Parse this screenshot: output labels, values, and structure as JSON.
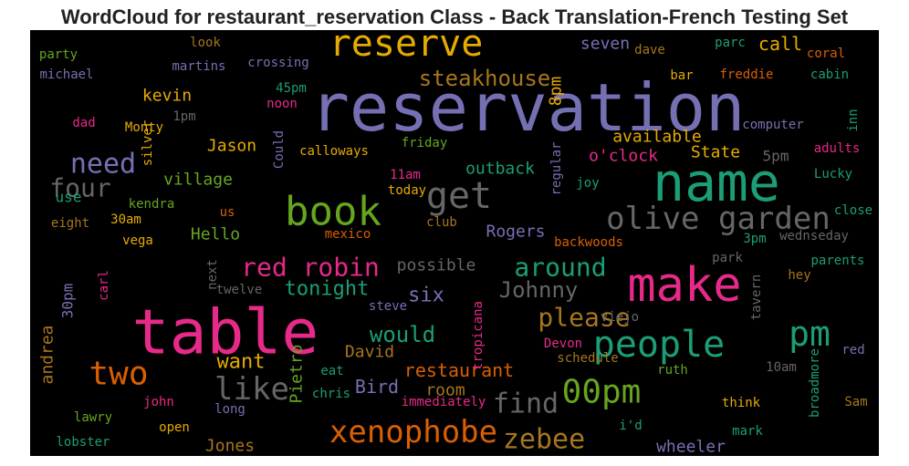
{
  "chart_data": {
    "type": "wordcloud",
    "title": "WordCloud for restaurant_reservation Class - Back Translation-French Testing Set",
    "background": "#000000",
    "words": [
      {
        "text": "reserve",
        "color": "#e6ab02"
      },
      {
        "text": "reservation",
        "color": "#7570b3"
      },
      {
        "text": "name",
        "color": "#1b9e77"
      },
      {
        "text": "table",
        "color": "#e7298a"
      },
      {
        "text": "make",
        "color": "#e7298a"
      },
      {
        "text": "book",
        "color": "#66a61e"
      },
      {
        "text": "get",
        "color": "#666666"
      },
      {
        "text": "olive garden",
        "color": "#666666"
      },
      {
        "text": "people",
        "color": "#1b9e77"
      },
      {
        "text": "pm",
        "color": "#1b9e77"
      },
      {
        "text": "two",
        "color": "#d95f02"
      },
      {
        "text": "need",
        "color": "#7570b3"
      },
      {
        "text": "four",
        "color": "#666666"
      },
      {
        "text": "red robin",
        "color": "#e7298a"
      },
      {
        "text": "around",
        "color": "#1b9e77"
      },
      {
        "text": "please",
        "color": "#a6761d"
      },
      {
        "text": "like",
        "color": "#666666"
      },
      {
        "text": "find",
        "color": "#666666"
      },
      {
        "text": "00pm",
        "color": "#66a61e"
      },
      {
        "text": "xenophobe",
        "color": "#d95f02"
      },
      {
        "text": "zebee",
        "color": "#a6761d"
      },
      {
        "text": "steakhouse",
        "color": "#a6761d"
      },
      {
        "text": "Johnny",
        "color": "#666666"
      },
      {
        "text": "tonight",
        "color": "#1b9e77"
      },
      {
        "text": "six",
        "color": "#7570b3"
      },
      {
        "text": "would",
        "color": "#1b9e77"
      },
      {
        "text": "want",
        "color": "#e6ab02"
      },
      {
        "text": "restaurant",
        "color": "#d95f02"
      },
      {
        "text": "David",
        "color": "#a6761d"
      },
      {
        "text": "Bird",
        "color": "#7570b3"
      },
      {
        "text": "room",
        "color": "#a6761d"
      },
      {
        "text": "Jones",
        "color": "#a6761d"
      },
      {
        "text": "wheeler",
        "color": "#7570b3"
      },
      {
        "text": "seven",
        "color": "#7570b3"
      },
      {
        "text": "call",
        "color": "#e6ab02"
      },
      {
        "text": "8pm",
        "color": "#e6ab02"
      },
      {
        "text": "kevin",
        "color": "#e6ab02"
      },
      {
        "text": "Jason",
        "color": "#e6ab02"
      },
      {
        "text": "village",
        "color": "#66a61e"
      },
      {
        "text": "outback",
        "color": "#1b9e77"
      },
      {
        "text": "available",
        "color": "#e6ab02"
      },
      {
        "text": "o'clock",
        "color": "#e7298a"
      },
      {
        "text": "State",
        "color": "#e6ab02"
      },
      {
        "text": "5pm",
        "color": "#666666"
      },
      {
        "text": "Hello",
        "color": "#66a61e"
      },
      {
        "text": "Rogers",
        "color": "#7570b3"
      },
      {
        "text": "possible",
        "color": "#666666"
      },
      {
        "text": "30pm",
        "color": "#7570b3"
      },
      {
        "text": "andrea",
        "color": "#a6761d"
      },
      {
        "text": "Pietro",
        "color": "#66a61e"
      },
      {
        "text": "use",
        "color": "#1b9e77"
      },
      {
        "text": "kendra",
        "color": "#66a61e"
      },
      {
        "text": "eight",
        "color": "#a6761d"
      },
      {
        "text": "30am",
        "color": "#e6ab02"
      },
      {
        "text": "vega",
        "color": "#e6ab02"
      },
      {
        "text": "us",
        "color": "#d95f02"
      },
      {
        "text": "mexico",
        "color": "#d95f02"
      },
      {
        "text": "backwoods",
        "color": "#d95f02"
      },
      {
        "text": "3pm",
        "color": "#1b9e77"
      },
      {
        "text": "wednseday",
        "color": "#666666"
      },
      {
        "text": "close",
        "color": "#1b9e77"
      },
      {
        "text": "parents",
        "color": "#1b9e77"
      },
      {
        "text": "park",
        "color": "#666666"
      },
      {
        "text": "hey",
        "color": "#a6761d"
      },
      {
        "text": "tavern",
        "color": "#666666"
      },
      {
        "text": "viejo",
        "color": "#666666"
      },
      {
        "text": "red",
        "color": "#7570b3"
      },
      {
        "text": "10am",
        "color": "#666666"
      },
      {
        "text": "broadmore",
        "color": "#1b9e77"
      },
      {
        "text": "Sam",
        "color": "#a6761d"
      },
      {
        "text": "think",
        "color": "#e6ab02"
      },
      {
        "text": "mark",
        "color": "#1b9e77"
      },
      {
        "text": "i'd",
        "color": "#1b9e77"
      },
      {
        "text": "ruth",
        "color": "#66a61e"
      },
      {
        "text": "schedule",
        "color": "#a6761d"
      },
      {
        "text": "Devon",
        "color": "#e7298a"
      },
      {
        "text": "tropicana",
        "color": "#e7298a"
      },
      {
        "text": "immediately",
        "color": "#e7298a"
      },
      {
        "text": "chris",
        "color": "#1b9e77"
      },
      {
        "text": "eat",
        "color": "#1b9e77"
      },
      {
        "text": "steve",
        "color": "#7570b3"
      },
      {
        "text": "twelve",
        "color": "#666666"
      },
      {
        "text": "next",
        "color": "#666666"
      },
      {
        "text": "carl",
        "color": "#e7298a"
      },
      {
        "text": "john",
        "color": "#e7298a"
      },
      {
        "text": "long",
        "color": "#7570b3"
      },
      {
        "text": "open",
        "color": "#e6ab02"
      },
      {
        "text": "lawry",
        "color": "#66a61e"
      },
      {
        "text": "lobster",
        "color": "#1b9e77"
      },
      {
        "text": "silver",
        "color": "#e6ab02"
      },
      {
        "text": "Could",
        "color": "#7570b3"
      },
      {
        "text": "calloways",
        "color": "#e6ab02"
      },
      {
        "text": "friday",
        "color": "#66a61e"
      },
      {
        "text": "11am",
        "color": "#e7298a"
      },
      {
        "text": "today",
        "color": "#e6ab02"
      },
      {
        "text": "club",
        "color": "#a6761d"
      },
      {
        "text": "joy",
        "color": "#1b9e77"
      },
      {
        "text": "regular",
        "color": "#7570b3"
      },
      {
        "text": "Lucky",
        "color": "#1b9e77"
      },
      {
        "text": "adults",
        "color": "#e7298a"
      },
      {
        "text": "computer",
        "color": "#7570b3"
      },
      {
        "text": "inn",
        "color": "#1b9e77"
      },
      {
        "text": "cabin",
        "color": "#1b9e77"
      },
      {
        "text": "coral",
        "color": "#d95f02"
      },
      {
        "text": "parc",
        "color": "#1b9e77"
      },
      {
        "text": "dave",
        "color": "#a6761d"
      },
      {
        "text": "freddie",
        "color": "#d95f02"
      },
      {
        "text": "bar",
        "color": "#e6ab02"
      },
      {
        "text": "1pm",
        "color": "#666666"
      },
      {
        "text": "Monty",
        "color": "#e6ab02"
      },
      {
        "text": "dad",
        "color": "#e7298a"
      },
      {
        "text": "noon",
        "color": "#e7298a"
      },
      {
        "text": "45pm",
        "color": "#1b9e77"
      },
      {
        "text": "crossing",
        "color": "#7570b3"
      },
      {
        "text": "martins",
        "color": "#7570b3"
      },
      {
        "text": "look",
        "color": "#a6761d"
      },
      {
        "text": "party",
        "color": "#66a61e"
      },
      {
        "text": "michael",
        "color": "#7570b3"
      }
    ]
  }
}
